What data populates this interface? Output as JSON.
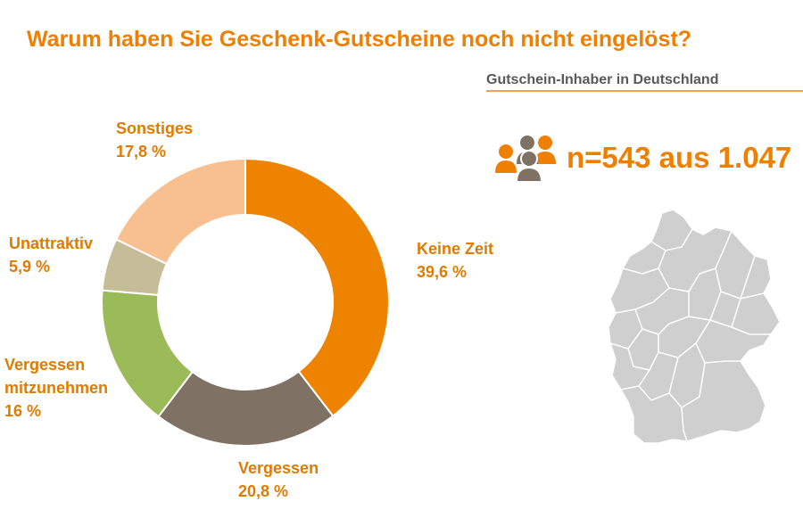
{
  "title": "Warum haben Sie Geschenk-Gutscheine noch nicht eingelöst?",
  "subheading": "Gutschein-Inhaber in Deutschland",
  "sample_text": "n=543 aus 1.047",
  "colors": {
    "accent": "#ee7f00",
    "keine_zeit": "#ee8300",
    "vergessen": "#7f7164",
    "mitzunehmen": "#9bbb59",
    "unattraktiv": "#c4bd97",
    "sonstiges": "#f8c090",
    "map_fill": "#cfcfcf",
    "map_border": "#ffffff"
  },
  "icons": [
    "people-group-icon",
    "germany-map-icon"
  ],
  "chart_data": {
    "type": "pie",
    "donut": true,
    "title": "Warum haben Sie Geschenk-Gutscheine noch nicht eingelöst?",
    "slices": [
      {
        "label": "Keine Zeit",
        "value": 39.6,
        "value_label": "39,6 %",
        "color": "#ee8300"
      },
      {
        "label": "Vergessen",
        "value": 20.8,
        "value_label": "20,8 %",
        "color": "#7f7164"
      },
      {
        "label": "Vergessen mitzunehmen",
        "value": 16,
        "value_label": "16 %",
        "color": "#9bbb59"
      },
      {
        "label": "Unattraktiv",
        "value": 5.9,
        "value_label": "5,9 %",
        "color": "#c4bd97"
      },
      {
        "label": "Sonstiges",
        "value": 17.8,
        "value_label": "17,8 %",
        "color": "#f8c090"
      }
    ]
  }
}
